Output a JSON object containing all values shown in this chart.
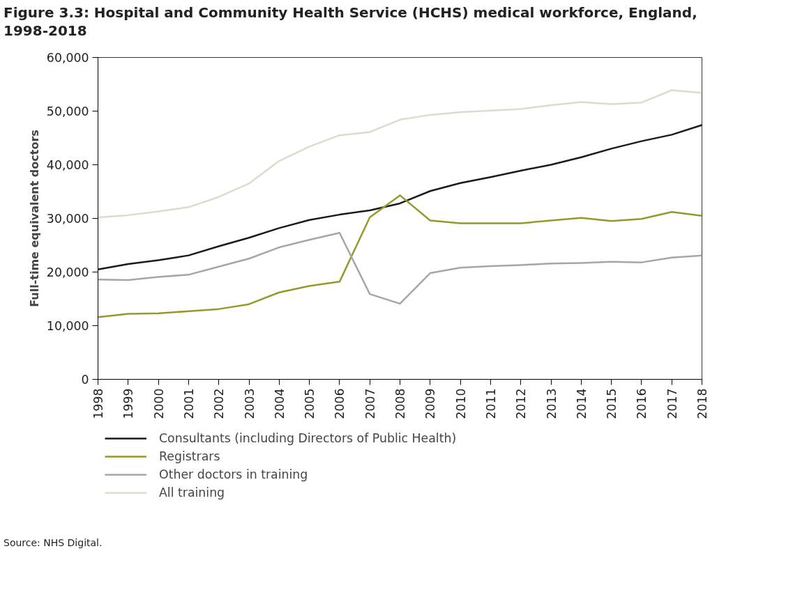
{
  "chart_data": {
    "type": "line",
    "title": "Figure 3.3: Hospital and Community Health Service (HCHS) medical workforce, England, 1998-2018",
    "ylabel": "Full-time equivalent doctors",
    "x": [
      1998,
      1999,
      2000,
      2001,
      2002,
      2003,
      2004,
      2005,
      2006,
      2007,
      2008,
      2009,
      2010,
      2011,
      2012,
      2013,
      2014,
      2015,
      2016,
      2017,
      2018
    ],
    "series": [
      {
        "name": "Consultants (including Directors of Public Health)",
        "color": "#1a1a1a",
        "values": [
          20500,
          21500,
          22200,
          23100,
          24800,
          26400,
          28200,
          29700,
          30700,
          31500,
          32800,
          35100,
          36600,
          37700,
          38900,
          40000,
          41400,
          43000,
          44400,
          45600,
          47400
        ]
      },
      {
        "name": "Registrars",
        "color": "#949a2a",
        "values": [
          11600,
          12200,
          12300,
          12700,
          13100,
          14000,
          16200,
          17400,
          18200,
          30200,
          34300,
          29600,
          29100,
          29100,
          29100,
          29600,
          30100,
          29500,
          29900,
          31200,
          30500
        ]
      },
      {
        "name": "Other doctors in training",
        "color": "#a6a6a6",
        "values": [
          18600,
          18500,
          19100,
          19500,
          21000,
          22500,
          24600,
          26000,
          27300,
          15900,
          14100,
          19800,
          20800,
          21100,
          21300,
          21600,
          21700,
          21900,
          21800,
          22700,
          23100
        ]
      },
      {
        "name": "All training",
        "color": "#dcdccc",
        "values": [
          30200,
          30600,
          31300,
          32100,
          34000,
          36500,
          40700,
          43400,
          45500,
          46100,
          48400,
          49300,
          49800,
          50100,
          50400,
          51100,
          51700,
          51300,
          51600,
          53900,
          53400
        ]
      }
    ],
    "xlim": [
      1998,
      2018
    ],
    "xticks": [
      1998,
      1999,
      2000,
      2001,
      2002,
      2003,
      2004,
      2005,
      2006,
      2007,
      2008,
      2009,
      2010,
      2011,
      2012,
      2013,
      2014,
      2015,
      2016,
      2017,
      2018
    ],
    "ylim": [
      0,
      60000
    ],
    "yticks": [
      {
        "value": 0,
        "label": "0"
      },
      {
        "value": 10000,
        "label": "10,000"
      },
      {
        "value": 20000,
        "label": "20,000"
      },
      {
        "value": 30000,
        "label": "30,000"
      },
      {
        "value": 40000,
        "label": "40,000"
      },
      {
        "value": 50000,
        "label": "50,000"
      },
      {
        "value": 60000,
        "label": "60,000"
      }
    ],
    "grid": false,
    "legend": "bottom",
    "marker": "none",
    "line_style": "solid",
    "annotations": [
      "Source: NHS Digital."
    ]
  }
}
